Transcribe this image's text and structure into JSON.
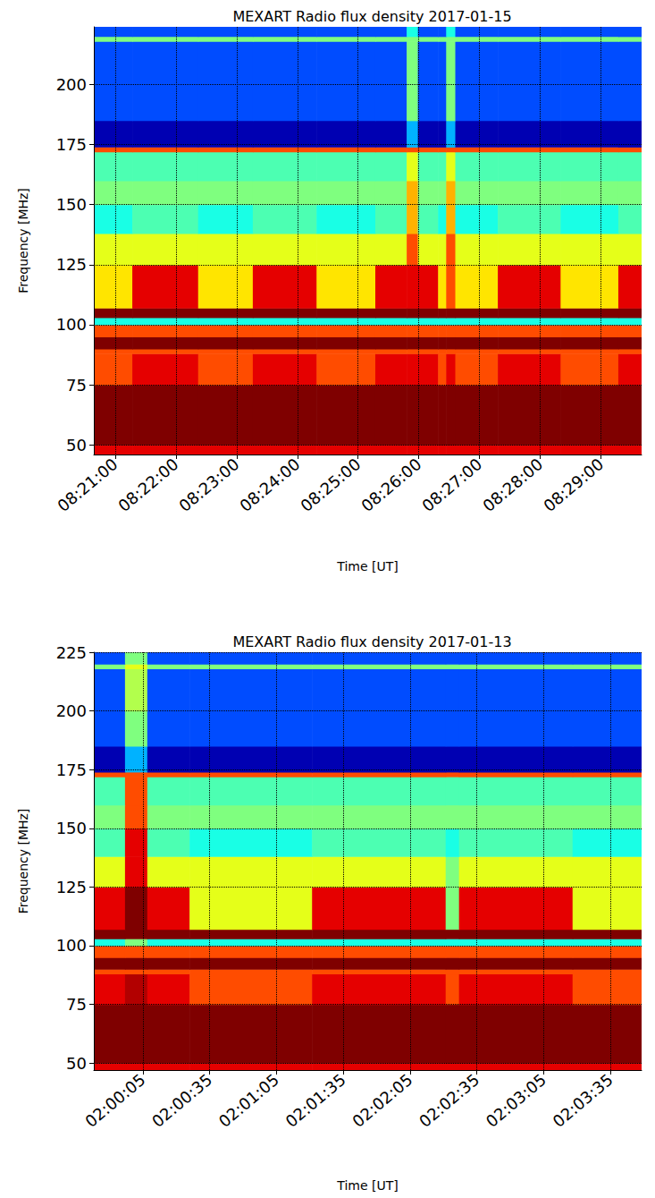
{
  "chart_data": [
    {
      "type": "heatmap",
      "title": "MEXART Radio flux density 2017-01-15",
      "x_label": "Time [UT]",
      "y_label": "Frequency [MHz]",
      "xlim": [
        30039,
        30580
      ],
      "xticks": [
        {
          "value": 30060,
          "label": "08:21:00"
        },
        {
          "value": 30120,
          "label": "08:22:00"
        },
        {
          "value": 30180,
          "label": "08:23:00"
        },
        {
          "value": 30240,
          "label": "08:24:00"
        },
        {
          "value": 30300,
          "label": "08:25:00"
        },
        {
          "value": 30360,
          "label": "08:26:00"
        },
        {
          "value": 30420,
          "label": "08:27:00"
        },
        {
          "value": 30480,
          "label": "08:28:00"
        },
        {
          "value": 30540,
          "label": "08:29:00"
        }
      ],
      "ylim": [
        46,
        224
      ],
      "yticks": [
        50,
        75,
        100,
        125,
        150,
        175,
        200
      ],
      "grid": true,
      "zlim": [
        0,
        10
      ],
      "time_edges": [
        30039,
        30077,
        30142,
        30196,
        30259,
        30317,
        30348,
        30359,
        30379,
        30387,
        30396,
        30438,
        30500,
        30557,
        30580
      ],
      "freq_edges": [
        46,
        50,
        75,
        88,
        90,
        95,
        100,
        103,
        107,
        125,
        138,
        150,
        160,
        172,
        174,
        185,
        200,
        218,
        220,
        224
      ],
      "cells": [
        [
          9,
          9,
          9,
          9,
          9,
          9,
          9,
          9,
          9,
          9,
          9,
          9,
          9,
          9
        ],
        [
          10,
          10,
          10,
          10,
          10,
          10,
          10,
          10,
          10,
          10,
          10,
          10,
          10,
          10
        ],
        [
          8,
          9,
          8,
          9,
          8,
          9,
          9,
          9,
          8,
          9,
          8,
          9,
          8,
          9
        ],
        [
          8,
          8,
          8,
          8,
          8,
          8,
          8,
          8,
          8,
          8,
          8,
          8,
          8,
          8
        ],
        [
          10,
          10,
          10,
          10,
          10,
          10,
          10,
          10,
          10,
          10,
          10,
          10,
          10,
          10
        ],
        [
          8,
          8,
          8,
          8,
          8,
          8,
          8,
          8,
          8,
          8,
          8,
          8,
          8,
          8
        ],
        [
          4,
          4,
          4,
          4,
          4,
          4,
          4,
          4,
          4,
          4,
          4,
          4,
          4,
          4
        ],
        [
          10,
          10,
          10,
          10,
          10,
          10,
          10,
          10,
          10,
          10,
          10,
          10,
          10,
          10
        ],
        [
          6.5,
          9,
          6.5,
          9,
          6.5,
          9,
          9,
          9,
          6.5,
          8,
          6.5,
          9,
          6.5,
          9
        ],
        [
          6,
          6,
          6,
          6,
          6,
          6,
          8,
          6,
          6,
          8,
          6,
          6,
          6,
          6
        ],
        [
          4,
          4.5,
          4,
          4.5,
          4,
          4.5,
          7,
          4.5,
          4,
          7,
          4,
          4.5,
          4,
          4.5
        ],
        [
          5,
          5,
          5,
          5,
          5,
          5,
          7,
          5,
          5,
          7,
          5,
          5,
          5,
          5
        ],
        [
          4.5,
          4.5,
          4.5,
          4.5,
          4.5,
          4.5,
          6,
          4.5,
          4.5,
          6,
          4.5,
          4.5,
          4.5,
          4.5
        ],
        [
          8,
          8,
          8,
          8,
          8,
          8,
          8,
          8,
          8,
          8,
          8,
          8,
          8,
          8
        ],
        [
          0.5,
          0.5,
          0.5,
          0.5,
          0.5,
          0.5,
          3,
          0.5,
          0.5,
          3,
          0.5,
          0.5,
          0.5,
          0.5
        ],
        [
          2,
          2,
          2,
          2,
          2,
          2,
          5,
          2,
          2,
          5,
          2,
          2,
          2,
          2
        ],
        [
          2,
          2,
          2,
          2,
          2,
          2,
          5,
          2,
          2,
          5,
          2,
          2,
          2,
          2
        ],
        [
          5,
          5,
          5,
          5,
          5,
          5,
          5,
          5,
          5,
          5,
          5,
          5,
          5,
          5
        ],
        [
          2,
          2,
          2,
          2,
          2,
          2,
          4,
          2,
          2,
          4,
          2,
          2,
          2,
          2
        ]
      ]
    },
    {
      "type": "heatmap",
      "title": "MEXART Radio flux density 2017-01-13",
      "x_label": "Time [UT]",
      "y_label": "Frequency [MHz]",
      "xlim": [
        7183,
        7429
      ],
      "xticks": [
        {
          "value": 7205,
          "label": "02:00:05"
        },
        {
          "value": 7235,
          "label": "02:00:35"
        },
        {
          "value": 7265,
          "label": "02:01:05"
        },
        {
          "value": 7295,
          "label": "02:01:35"
        },
        {
          "value": 7325,
          "label": "02:02:05"
        },
        {
          "value": 7355,
          "label": "02:02:35"
        },
        {
          "value": 7385,
          "label": "02:03:05"
        },
        {
          "value": 7415,
          "label": "02:03:35"
        }
      ],
      "ylim": [
        47,
        225
      ],
      "yticks": [
        50,
        75,
        100,
        125,
        150,
        175,
        200,
        225
      ],
      "grid": true,
      "zlim": [
        0,
        10
      ],
      "time_edges": [
        7183,
        7197,
        7207,
        7226,
        7281,
        7341,
        7347,
        7398,
        7429
      ],
      "freq_edges": [
        47,
        50,
        75,
        88,
        90,
        95,
        100,
        103,
        107,
        125,
        138,
        150,
        160,
        172,
        174,
        185,
        200,
        218,
        220,
        225
      ],
      "cells": [
        [
          9,
          9,
          9,
          9,
          9,
          9,
          9,
          9
        ],
        [
          10,
          10,
          10,
          10,
          10,
          10,
          10,
          10
        ],
        [
          9,
          9.5,
          9,
          8,
          9,
          8,
          9,
          8
        ],
        [
          8,
          8,
          8,
          8,
          8,
          8,
          8,
          8
        ],
        [
          10,
          10,
          10,
          10,
          10,
          10,
          10,
          10
        ],
        [
          8,
          8,
          8,
          8,
          8,
          8,
          8,
          8
        ],
        [
          4,
          5,
          4,
          4,
          4,
          4,
          4,
          4
        ],
        [
          10,
          10,
          10,
          10,
          10,
          10,
          10,
          10
        ],
        [
          9,
          10,
          9,
          6,
          9,
          5,
          9,
          6
        ],
        [
          6,
          9,
          6,
          6,
          6,
          5,
          6,
          6
        ],
        [
          4.5,
          9,
          4.5,
          4,
          4.5,
          4,
          4.5,
          4
        ],
        [
          5,
          8,
          5,
          5,
          5,
          5,
          5,
          5
        ],
        [
          4.5,
          8,
          4.5,
          4.5,
          4.5,
          4.5,
          4.5,
          4.5
        ],
        [
          8,
          8,
          8,
          8,
          8,
          8,
          8,
          8
        ],
        [
          0.5,
          3,
          0.5,
          0.5,
          0.5,
          0.5,
          0.5,
          0.5
        ],
        [
          2,
          5,
          2,
          2,
          2,
          2,
          2,
          2
        ],
        [
          2,
          5.5,
          2,
          2,
          2,
          2,
          2,
          2
        ],
        [
          5,
          6,
          5,
          5,
          5,
          5,
          5,
          5
        ],
        [
          2,
          5,
          2,
          2,
          2,
          2,
          2,
          2
        ]
      ]
    }
  ]
}
